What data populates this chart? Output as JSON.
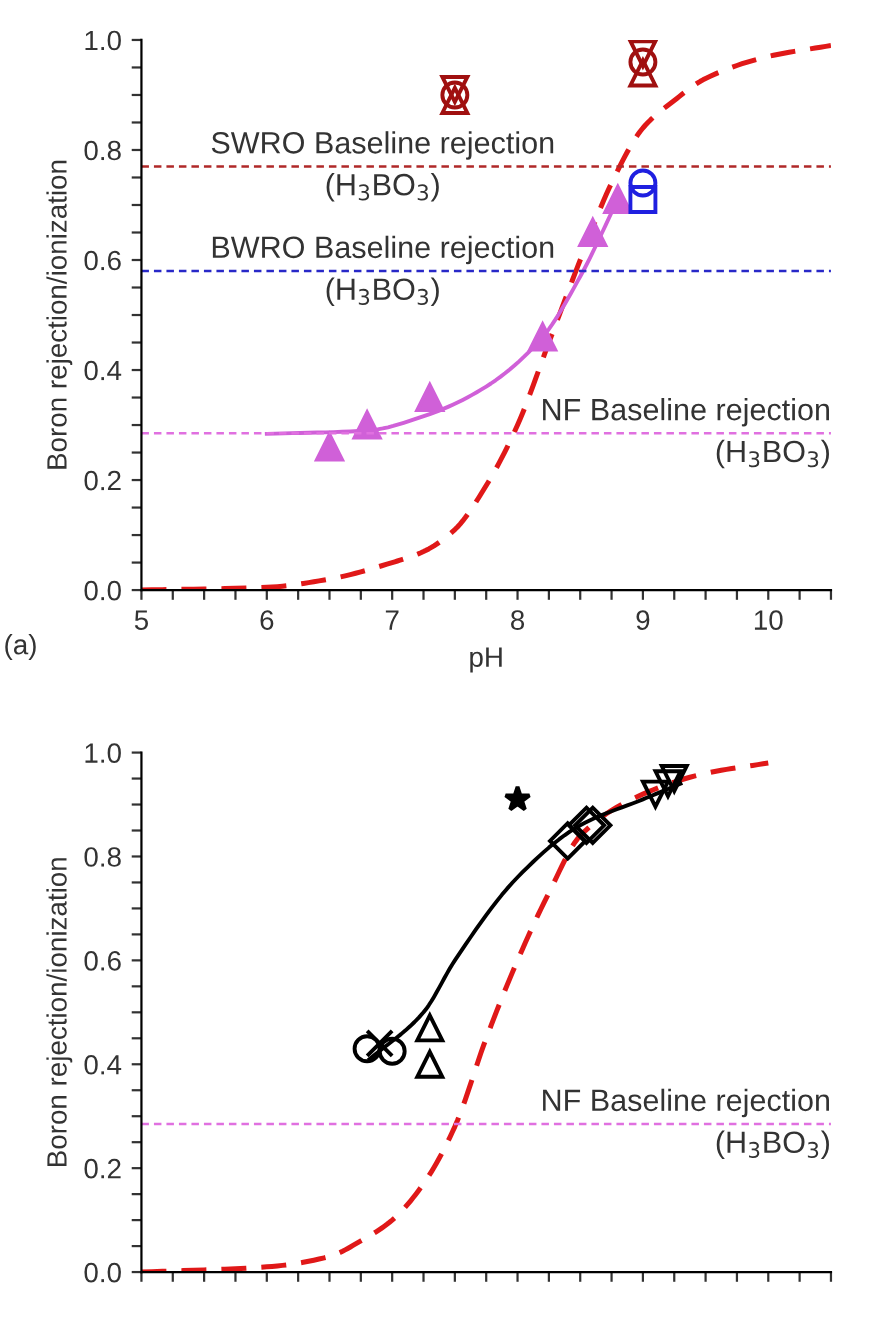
{
  "chart_data": [
    {
      "type": "line",
      "xlabel": "pH",
      "ylabel": "Boron rejection/ionization",
      "xlim": [
        5,
        10.5
      ],
      "ylim": [
        0,
        1
      ],
      "xticks": [
        5,
        {
          "value": 5.25,
          "label": null
        },
        {
          "value": 5.5,
          "label": null
        },
        {
          "value": 5.75,
          "label": null
        },
        6,
        {
          "value": 6.25,
          "label": null
        },
        {
          "value": 6.5,
          "label": null
        },
        {
          "value": 6.75,
          "label": null
        },
        7,
        {
          "value": 7.25,
          "label": null
        },
        {
          "value": 7.5,
          "label": null
        },
        {
          "value": 7.75,
          "label": null
        },
        8,
        {
          "value": 8.25,
          "label": null
        },
        {
          "value": 8.5,
          "label": null
        },
        {
          "value": 8.75,
          "label": null
        },
        9,
        {
          "value": 9.25,
          "label": null
        },
        {
          "value": 9.5,
          "label": null
        },
        {
          "value": 9.75,
          "label": null
        },
        10,
        {
          "value": 10.25,
          "label": null
        },
        {
          "value": 10.5,
          "label": null
        }
      ],
      "yticks": [
        {
          "value": 0,
          "label": "0.0"
        },
        {
          "value": 0.05,
          "label": null
        },
        {
          "value": 0.1,
          "label": null
        },
        {
          "value": 0.15,
          "label": null
        },
        0.2,
        {
          "value": 0.25,
          "label": null
        },
        {
          "value": 0.3,
          "label": null
        },
        {
          "value": 0.35,
          "label": null
        },
        0.4,
        {
          "value": 0.45,
          "label": null
        },
        {
          "value": 0.5,
          "label": null
        },
        {
          "value": 0.55,
          "label": null
        },
        0.6,
        {
          "value": 0.65,
          "label": null
        },
        {
          "value": 0.7,
          "label": null
        },
        {
          "value": 0.75,
          "label": null
        },
        0.8,
        {
          "value": 0.85,
          "label": null
        },
        {
          "value": 0.9,
          "label": null
        },
        {
          "value": 0.95,
          "label": null
        },
        {
          "value": 1,
          "label": "1.0"
        }
      ],
      "grid": false,
      "legend": false,
      "annotations": [
        "(a)"
      ],
      "ref_lines": [
        {
          "axis": "y",
          "value": 0.77,
          "label": "SWRO Baseline rejection\n(H$_{3}$BO$_{3}$)",
          "color": "#b02828",
          "line_style": "dashed"
        },
        {
          "axis": "y",
          "value": 0.58,
          "label": "BWRO Baseline rejection\n(H$_{3}$BO$_{3}$)",
          "color": "#2828c8",
          "line_style": "dashed"
        },
        {
          "axis": "y",
          "value": 0.285,
          "label": "NF Baseline rejection\n(H$_{3}$BO$_{3}$)",
          "color": "#e070e0",
          "line_style": "dashed"
        }
      ],
      "series": [
        {
          "color": "#e01818",
          "line_style": "dashed",
          "marker": "none",
          "x": [
            5,
            6,
            6.5,
            7,
            7.25,
            7.5,
            7.75,
            8,
            8.25,
            8.5,
            8.75,
            9,
            9.25,
            9.5,
            10,
            10.5
          ],
          "values": [
            0,
            0.005,
            0.02,
            0.05,
            0.07,
            0.11,
            0.19,
            0.3,
            0.45,
            0.6,
            0.74,
            0.84,
            0.89,
            0.93,
            0.97,
            0.99
          ]
        },
        {
          "color": "#d060d8",
          "line_style": "solid",
          "marker": "none",
          "x": [
            6,
            6.8,
            7.3,
            7.75,
            8.2,
            8.5,
            8.8
          ],
          "values": [
            0.284,
            0.29,
            0.32,
            0.37,
            0.46,
            0.57,
            0.71
          ]
        },
        {
          "type": "scatter",
          "color": "#d060d8",
          "marker": "triangle",
          "x": [
            6.5,
            6.8,
            7.3,
            8.2,
            8.6,
            8.8
          ],
          "values": [
            0.26,
            0.3,
            0.35,
            0.46,
            0.65,
            0.71
          ]
        },
        {
          "type": "scatter",
          "color": "#a01010",
          "marker": "triangle_down",
          "x": [
            7.5,
            9
          ],
          "values": [
            0.91,
            0.975
          ]
        },
        {
          "type": "scatter",
          "color": "#a01010",
          "marker": "triangle",
          "x": [
            7.5,
            9
          ],
          "values": [
            0.89,
            0.94
          ]
        },
        {
          "type": "scatter",
          "color": "#a01010",
          "marker": "circle",
          "x": [
            7.5,
            9
          ],
          "values": [
            0.9,
            0.96
          ]
        },
        {
          "type": "scatter",
          "color": "#1f1fe0",
          "marker": "square",
          "x": [
            9
          ],
          "values": [
            0.71
          ]
        },
        {
          "type": "scatter",
          "color": "#1f1fe0",
          "marker": "circle",
          "x": [
            9
          ],
          "values": [
            0.74
          ]
        }
      ]
    },
    {
      "type": "line",
      "ylabel": "Boron rejection/ionization",
      "xlim": [
        5,
        10.5
      ],
      "ylim": [
        0,
        1
      ],
      "tick_labels": "y",
      "xticks": [
        5,
        {
          "value": 5.25,
          "label": null
        },
        {
          "value": 5.5,
          "label": null
        },
        {
          "value": 5.75,
          "label": null
        },
        6,
        {
          "value": 6.25,
          "label": null
        },
        {
          "value": 6.5,
          "label": null
        },
        {
          "value": 6.75,
          "label": null
        },
        7,
        {
          "value": 7.25,
          "label": null
        },
        {
          "value": 7.5,
          "label": null
        },
        {
          "value": 7.75,
          "label": null
        },
        8,
        {
          "value": 8.25,
          "label": null
        },
        {
          "value": 8.5,
          "label": null
        },
        {
          "value": 8.75,
          "label": null
        },
        9,
        {
          "value": 9.25,
          "label": null
        },
        {
          "value": 9.5,
          "label": null
        },
        {
          "value": 9.75,
          "label": null
        },
        10,
        {
          "value": 10.25,
          "label": null
        },
        {
          "value": 10.5,
          "label": null
        }
      ],
      "yticks": [
        {
          "value": 0,
          "label": "0.0"
        },
        {
          "value": 0.05,
          "label": null
        },
        {
          "value": 0.1,
          "label": null
        },
        {
          "value": 0.15,
          "label": null
        },
        0.2,
        {
          "value": 0.25,
          "label": null
        },
        {
          "value": 0.3,
          "label": null
        },
        {
          "value": 0.35,
          "label": null
        },
        0.4,
        {
          "value": 0.45,
          "label": null
        },
        {
          "value": 0.5,
          "label": null
        },
        {
          "value": 0.55,
          "label": null
        },
        0.6,
        {
          "value": 0.65,
          "label": null
        },
        {
          "value": 0.7,
          "label": null
        },
        {
          "value": 0.75,
          "label": null
        },
        0.8,
        {
          "value": 0.85,
          "label": null
        },
        {
          "value": 0.9,
          "label": null
        },
        {
          "value": 0.95,
          "label": null
        },
        {
          "value": 1,
          "label": "1.0"
        }
      ],
      "grid": false,
      "legend": false,
      "ref_lines": [
        {
          "axis": "y",
          "value": 0.285,
          "label": "NF Baseline rejection\n(H$_{3}$BO$_{3}$)",
          "color": "#e070e0",
          "line_style": "dashed"
        }
      ],
      "series": [
        {
          "color": "#e01818",
          "line_style": "dashed",
          "marker": "none",
          "x": [
            5,
            6,
            6.5,
            6.75,
            7,
            7.25,
            7.5,
            7.75,
            8,
            8.25,
            8.5,
            9,
            9.5,
            10
          ],
          "values": [
            0,
            0.01,
            0.03,
            0.06,
            0.1,
            0.17,
            0.28,
            0.45,
            0.6,
            0.73,
            0.84,
            0.92,
            0.96,
            0.98
          ]
        },
        {
          "color": "#000000",
          "line_style": "solid",
          "marker": "none",
          "x": [
            6.82,
            7.25,
            7.5,
            8,
            8.5,
            9,
            9.3
          ],
          "values": [
            0.41,
            0.5,
            0.6,
            0.76,
            0.86,
            0.91,
            0.94
          ]
        },
        {
          "type": "scatter",
          "color": "#000000",
          "marker": "circle",
          "x": [
            6.8,
            7
          ],
          "values": [
            0.43,
            0.425
          ]
        },
        {
          "type": "scatter",
          "color": "#000000",
          "marker": "cross",
          "x": [
            6.9
          ],
          "values": [
            0.44
          ]
        },
        {
          "type": "scatter",
          "color": "#000000",
          "marker": "triangle",
          "x": [
            7.3,
            7.3
          ],
          "values": [
            0.47,
            0.4
          ]
        },
        {
          "type": "scatter",
          "color": "#000000",
          "marker": "star",
          "x": [
            8
          ],
          "values": [
            0.91
          ]
        },
        {
          "type": "scatter",
          "color": "#000000",
          "marker": "diamond",
          "x": [
            8.4,
            8.55,
            8.6
          ],
          "values": [
            0.83,
            0.86,
            0.86
          ]
        },
        {
          "type": "scatter",
          "color": "#000000",
          "marker": "triangle_down",
          "x": [
            9.1,
            9.2,
            9.25
          ],
          "values": [
            0.92,
            0.94,
            0.95
          ]
        }
      ]
    }
  ]
}
